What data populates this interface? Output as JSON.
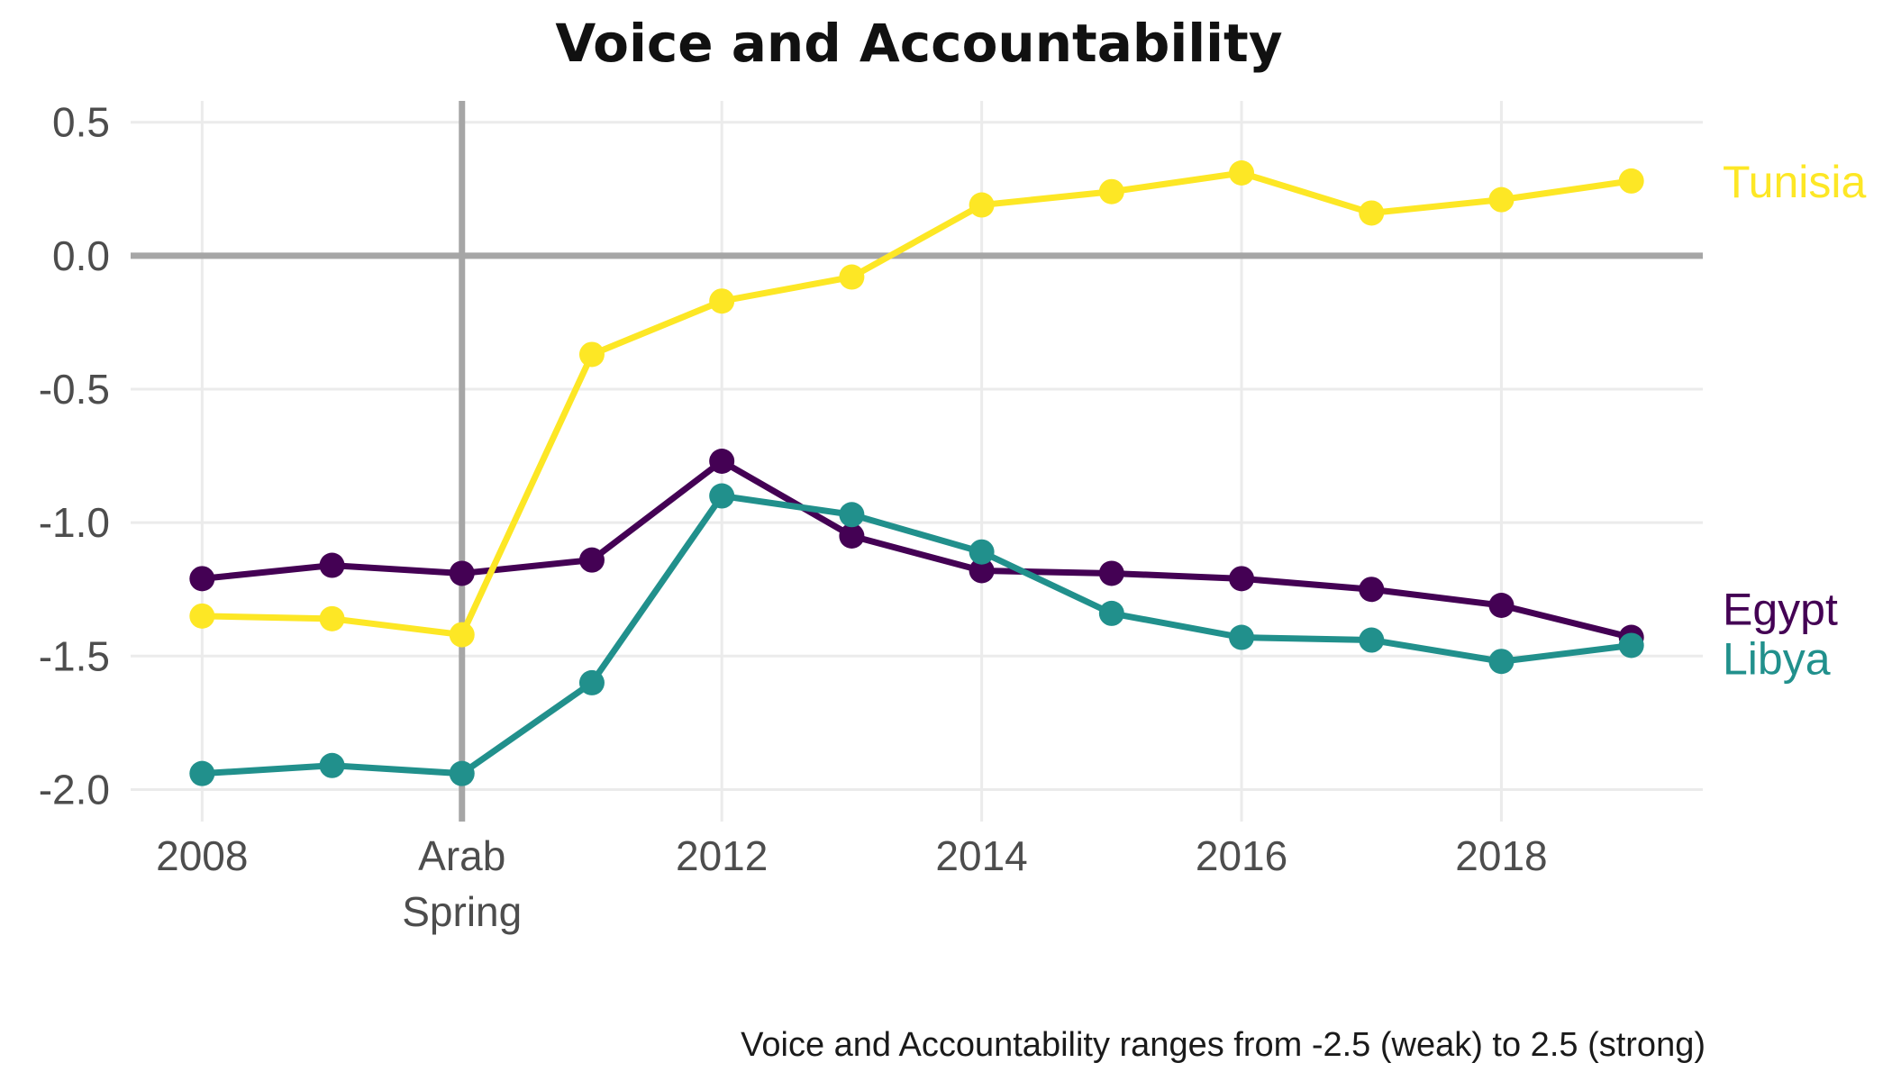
{
  "chart_data": {
    "type": "line",
    "title": "Voice and Accountability",
    "caption": "Voice and Accountability ranges from -2.5 (weak) to 2.5 (strong)",
    "x": [
      2008,
      2009,
      2010,
      2011,
      2012,
      2013,
      2014,
      2015,
      2016,
      2017,
      2018,
      2019
    ],
    "xlim": [
      2007.45,
      2019.55
    ],
    "ylim": [
      -2.12,
      0.58
    ],
    "x_ticks": [
      {
        "value": 2008,
        "label": "2008"
      },
      {
        "value": 2010,
        "label": "Arab\nSpring"
      },
      {
        "value": 2012,
        "label": "2012"
      },
      {
        "value": 2014,
        "label": "2014"
      },
      {
        "value": 2016,
        "label": "2016"
      },
      {
        "value": 2018,
        "label": "2018"
      }
    ],
    "y_ticks": [
      {
        "value": 0.5,
        "label": "0.5"
      },
      {
        "value": 0.0,
        "label": "0.0"
      },
      {
        "value": -0.5,
        "label": "-0.5"
      },
      {
        "value": -1.0,
        "label": "-1.0"
      },
      {
        "value": -1.5,
        "label": "-1.5"
      },
      {
        "value": -2.0,
        "label": "-2.0"
      }
    ],
    "reference_lines": {
      "x": 2010,
      "y": 0
    },
    "grid": true,
    "legend": "direct labels at right end of each line",
    "series": [
      {
        "name": "Egypt",
        "color": "#440154",
        "values": [
          -1.21,
          -1.16,
          -1.19,
          -1.14,
          -0.77,
          -1.05,
          -1.18,
          -1.19,
          -1.21,
          -1.25,
          -1.31,
          -1.43
        ]
      },
      {
        "name": "Libya",
        "color": "#21908C",
        "values": [
          -1.94,
          -1.91,
          -1.94,
          -1.6,
          -0.9,
          -0.97,
          -1.11,
          -1.34,
          -1.43,
          -1.44,
          -1.52,
          -1.46
        ]
      },
      {
        "name": "Tunisia",
        "color": "#FDE725",
        "values": [
          -1.35,
          -1.36,
          -1.42,
          -0.37,
          -0.17,
          -0.08,
          0.19,
          0.24,
          0.31,
          0.16,
          0.21,
          0.28
        ]
      }
    ]
  }
}
